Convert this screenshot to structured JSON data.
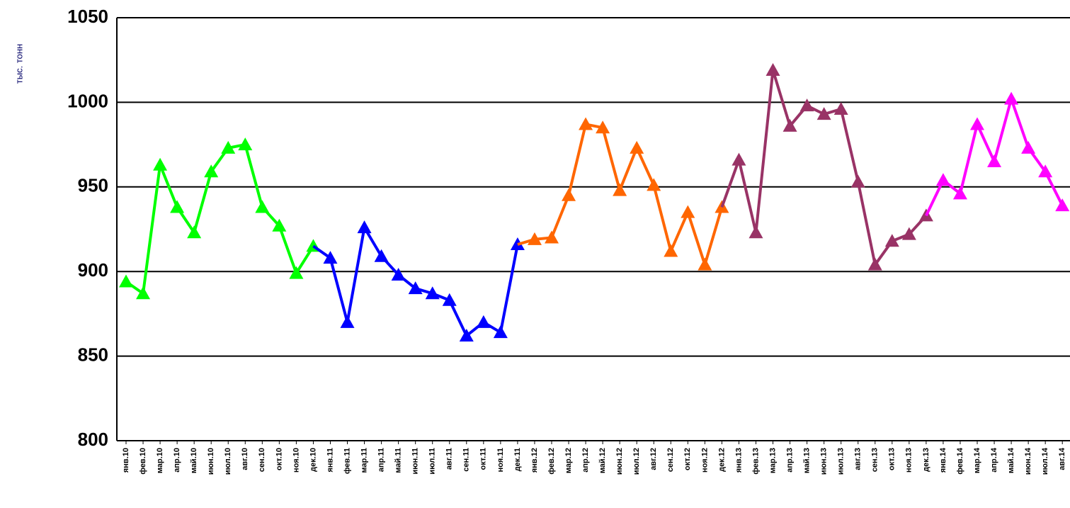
{
  "chart_data": {
    "type": "line",
    "y_label": "тыс. тонн",
    "categories": [
      "янв.10",
      "фев.10",
      "мар.10",
      "апр.10",
      "май.10",
      "июн.10",
      "июл.10",
      "авг.10",
      "сен.10",
      "окт.10",
      "ноя.10",
      "дек.10",
      "янв.11",
      "фев.11",
      "мар.11",
      "апр.11",
      "май.11",
      "июн.11",
      "июл.11",
      "авг.11",
      "сен.11",
      "окт.11",
      "ноя.11",
      "дек.11",
      "янв.12",
      "фев.12",
      "мар.12",
      "апр.12",
      "май.12",
      "июн.12",
      "июл.12",
      "авг.12",
      "сен.12",
      "окт.12",
      "ноя.12",
      "дек.12",
      "янв.13",
      "фев.13",
      "мар.13",
      "апр.13",
      "май.13",
      "июн.13",
      "июл.13",
      "авг.13",
      "сен.13",
      "окт.13",
      "ноя.13",
      "дек.13",
      "янв.14",
      "фев.14",
      "мар.14",
      "апр.14",
      "май.14",
      "июн.14",
      "июл.14",
      "авг.14"
    ],
    "series": [
      {
        "color": "#00ff00",
        "values": [
          894,
          887,
          963,
          938,
          923,
          959,
          973,
          975,
          938,
          927,
          899,
          915,
          null,
          null,
          null,
          null,
          null,
          null,
          null,
          null,
          null,
          null,
          null,
          null,
          null,
          null,
          null,
          null,
          null,
          null,
          null,
          null,
          null,
          null,
          null,
          null,
          null,
          null,
          null,
          null,
          null,
          null,
          null,
          null,
          null,
          null,
          null,
          null,
          null,
          null,
          null,
          null,
          null,
          null,
          null,
          null
        ]
      },
      {
        "color": "#0000ff",
        "values": [
          null,
          null,
          null,
          null,
          null,
          null,
          null,
          null,
          null,
          null,
          null,
          null,
          908,
          870,
          926,
          909,
          898,
          890,
          887,
          883,
          862,
          870,
          864,
          916,
          null,
          null,
          null,
          null,
          null,
          null,
          null,
          null,
          null,
          null,
          null,
          null,
          null,
          null,
          null,
          null,
          null,
          null,
          null,
          null,
          null,
          null,
          null,
          null,
          null,
          null,
          null,
          null,
          null,
          null,
          null,
          null
        ]
      },
      {
        "color": "#ff6600",
        "values": [
          null,
          null,
          null,
          null,
          null,
          null,
          null,
          null,
          null,
          null,
          null,
          null,
          null,
          null,
          null,
          null,
          null,
          null,
          null,
          null,
          null,
          null,
          null,
          null,
          919,
          920,
          945,
          987,
          985,
          948,
          973,
          951,
          912,
          935,
          904,
          938,
          null,
          null,
          null,
          null,
          null,
          null,
          null,
          null,
          null,
          null,
          null,
          null,
          null,
          null,
          null,
          null,
          null,
          null,
          null,
          null
        ]
      },
      {
        "color": "#993366",
        "values": [
          null,
          null,
          null,
          null,
          null,
          null,
          null,
          null,
          null,
          null,
          null,
          null,
          null,
          null,
          null,
          null,
          null,
          null,
          null,
          null,
          null,
          null,
          null,
          null,
          null,
          null,
          null,
          null,
          null,
          null,
          null,
          null,
          null,
          null,
          null,
          null,
          966,
          923,
          1019,
          986,
          998,
          993,
          996,
          953,
          904,
          918,
          922,
          933,
          null,
          null,
          null,
          null,
          null,
          null,
          null,
          null
        ]
      },
      {
        "color": "#ff00ff",
        "values": [
          null,
          null,
          null,
          null,
          null,
          null,
          null,
          null,
          null,
          null,
          null,
          null,
          null,
          null,
          null,
          null,
          null,
          null,
          null,
          null,
          null,
          null,
          null,
          null,
          null,
          null,
          null,
          null,
          null,
          null,
          null,
          null,
          null,
          null,
          null,
          null,
          null,
          null,
          null,
          null,
          null,
          null,
          null,
          null,
          null,
          null,
          null,
          null,
          954,
          946,
          987,
          965,
          1002,
          973,
          959,
          939
        ]
      }
    ],
    "ylim": [
      800,
      1050
    ],
    "yticks": [
      800,
      850,
      900,
      950,
      1000,
      1050
    ],
    "grid": true
  }
}
